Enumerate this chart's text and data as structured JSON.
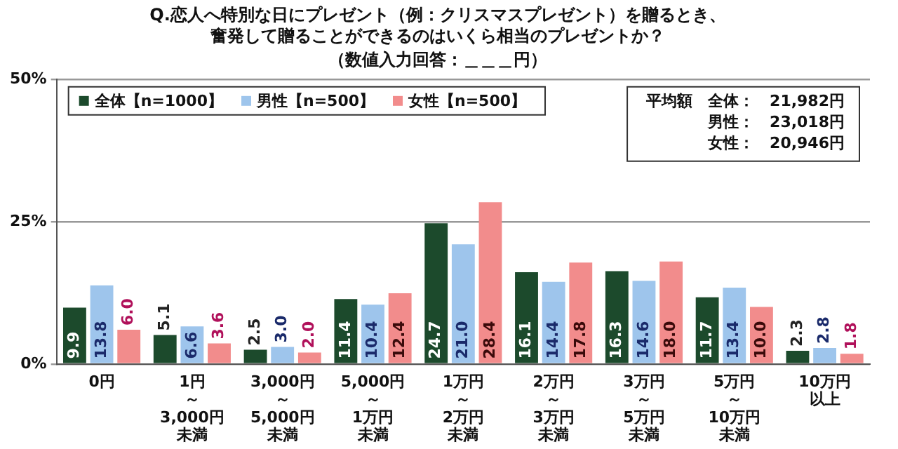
{
  "chart_data": {
    "type": "bar",
    "title": "Q.恋人へ特別な日にプレゼント（例：クリスマスプレゼント）を贈るとき、奮発して贈ることができるのはいくら相当のプレゼントか？",
    "subtitle": "（数値入力回答：＿＿＿円）",
    "categories": [
      "0円",
      "1円～3,000円未満",
      "3,000円～5,000円未満",
      "5,000円～1万円未満",
      "1万円～2万円未満",
      "2万円～3万円未満",
      "3万円～5万円未満",
      "5万円～10万円未満",
      "10万円以上"
    ],
    "series": [
      {
        "name": "全体【n=1000】",
        "color": "#1c4a2c",
        "values": [
          9.9,
          5.1,
          2.5,
          11.4,
          24.7,
          16.1,
          16.3,
          11.7,
          2.3
        ],
        "value_labels": [
          "9.9",
          "5.1",
          "2.5",
          "11.4",
          "24.7",
          "16.1",
          "16.3",
          "11.7",
          "2.3"
        ]
      },
      {
        "name": "男性【n=500】",
        "color": "#9ec5ec",
        "values": [
          13.8,
          6.6,
          3.0,
          10.4,
          21.0,
          14.4,
          14.6,
          13.4,
          2.8
        ],
        "value_labels": [
          "13.8",
          "6.6",
          "3.0",
          "10.4",
          "21.0",
          "14.4",
          "14.6",
          "13.4",
          "2.8"
        ]
      },
      {
        "name": "女性【n=500】",
        "color": "#f28c8c",
        "values": [
          6.0,
          3.6,
          2.0,
          12.4,
          28.4,
          17.8,
          18.0,
          10.0,
          1.8
        ],
        "value_labels": [
          "6.0",
          "3.6",
          "2.0",
          "12.4",
          "28.4",
          "17.8",
          "18.0",
          "10.0",
          "1.8"
        ]
      }
    ],
    "ylim": [
      0,
      50
    ],
    "yticks": [
      {
        "value": 0,
        "label": "0%"
      },
      {
        "value": 25,
        "label": "25%"
      },
      {
        "value": 50,
        "label": "50%"
      }
    ],
    "grid": "y",
    "legend": "top left",
    "annotations": [
      "平均額　全体：　21,982円",
      "男性：　23,018円",
      "女性：　20,946円"
    ]
  }
}
